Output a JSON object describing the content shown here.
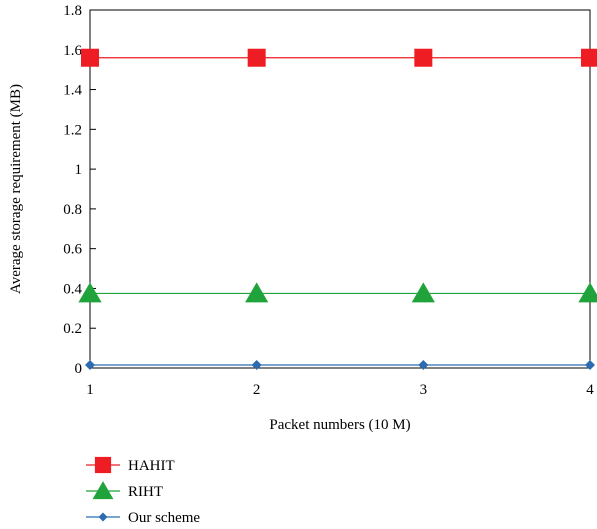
{
  "chart_data": {
    "type": "line",
    "x": [
      1,
      2,
      3,
      4
    ],
    "xlabel": "Packet numbers (10 M)",
    "ylabel": "Average storage requirement (MB)",
    "ylim": [
      0,
      1.8
    ],
    "xlim": [
      1,
      4
    ],
    "x_ticks": [
      "1",
      "2",
      "3",
      "4"
    ],
    "y_ticks": [
      "0",
      "0.2",
      "0.4",
      "0.6",
      "0.8",
      "1",
      "1.2",
      "1.4",
      "1.6",
      "1.8"
    ],
    "y_tick_values": [
      0,
      0.2,
      0.4,
      0.6,
      0.8,
      1.0,
      1.2,
      1.4,
      1.6,
      1.8
    ],
    "grid": false,
    "legend_position": "bottom-left",
    "series": [
      {
        "name": "HAHIT",
        "values": [
          1.56,
          1.56,
          1.56,
          1.56
        ],
        "color": "#ee1d23",
        "marker": "square"
      },
      {
        "name": "RIHT",
        "values": [
          0.375,
          0.375,
          0.375,
          0.375
        ],
        "color": "#1fa33a",
        "marker": "triangle"
      },
      {
        "name": "Our scheme",
        "values": [
          0.015,
          0.015,
          0.015,
          0.015
        ],
        "color": "#2b6cb0",
        "marker": "diamond"
      }
    ]
  }
}
